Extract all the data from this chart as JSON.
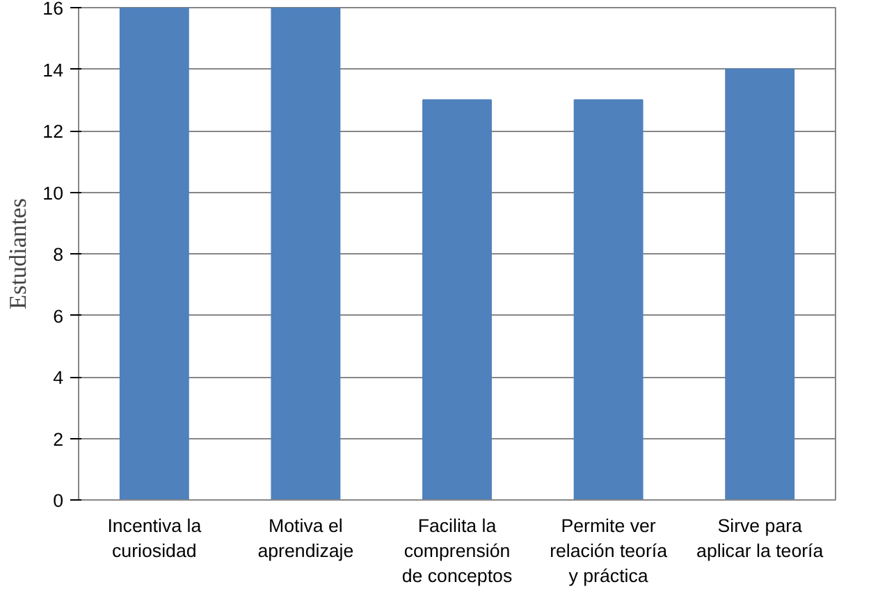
{
  "chart_data": {
    "type": "bar",
    "ylabel": "Estudiantes",
    "categories": [
      "Incentiva la\ncuriosidad",
      "Motiva el\naprendizaje",
      "Facilita la\ncomprensión\nde conceptos",
      "Permite ver\nrelación teoría\ny práctica",
      "Sirve para\naplicar la teoría"
    ],
    "values": [
      16,
      16,
      13,
      13,
      14
    ],
    "color": "#4f81bd",
    "ylim": [
      0,
      16
    ],
    "yticks": [
      0,
      2,
      4,
      6,
      8,
      10,
      12,
      14,
      16
    ],
    "grid": "y"
  }
}
